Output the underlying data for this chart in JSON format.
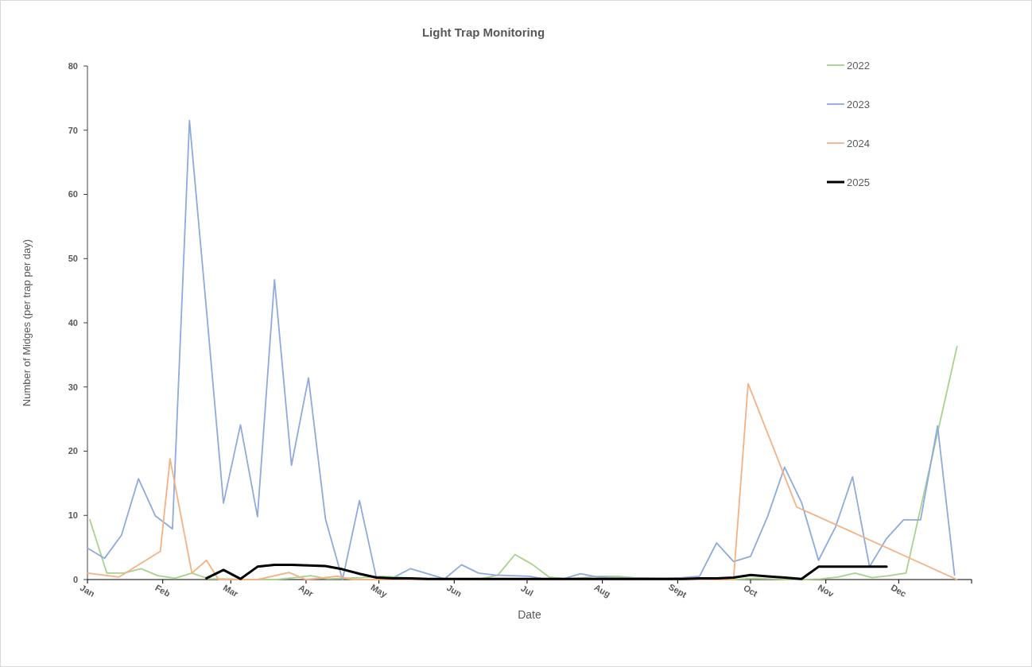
{
  "chart_data": {
    "type": "line",
    "title": "Light Trap Monitoring",
    "xlabel": "Date",
    "ylabel": "Number of Midges (per trap per day)",
    "xlim": [
      "--01-01",
      "--12-31"
    ],
    "xticks": [
      {
        "value": "--01-01",
        "label": "Jan"
      },
      {
        "value": "--02-01",
        "label": "Feb"
      },
      {
        "value": "--03-01",
        "label": "Mar"
      },
      {
        "value": "--04-01",
        "label": "Apr"
      },
      {
        "value": "--05-01",
        "label": "May"
      },
      {
        "value": "--06-01",
        "label": "Jun"
      },
      {
        "value": "--07-01",
        "label": "Jul"
      },
      {
        "value": "--08-01",
        "label": "Aug"
      },
      {
        "value": "--09-01",
        "label": "Sept"
      },
      {
        "value": "--10-01",
        "label": "Oct"
      },
      {
        "value": "--11-01",
        "label": "Nov"
      },
      {
        "value": "--12-01",
        "label": "Dec"
      },
      {
        "value": "--12-31",
        "label": null
      }
    ],
    "ylim": [
      0,
      80
    ],
    "yticks": [
      0,
      10,
      20,
      30,
      40,
      50,
      60,
      70,
      80
    ],
    "legend": "top right",
    "grid": false,
    "marker": "none",
    "series": [
      {
        "name": "2022",
        "color": "#a9d18e",
        "x": [
          "--01-02",
          "--01-09",
          "--01-16",
          "--01-23",
          "--01-30",
          "--02-06",
          "--02-13",
          "--02-20",
          "--02-27",
          "--03-06",
          "--03-13",
          "--03-20",
          "--03-27",
          "--04-03",
          "--04-10",
          "--04-17",
          "--04-24",
          "--05-01",
          "--05-08",
          "--05-15",
          "--05-22",
          "--05-29",
          "--06-05",
          "--06-12",
          "--06-19",
          "--06-26",
          "--07-03",
          "--07-10",
          "--07-17",
          "--07-24",
          "--07-31",
          "--08-07",
          "--08-14",
          "--08-21",
          "--08-28",
          "--09-04",
          "--09-11",
          "--09-18",
          "--09-25",
          "--10-02",
          "--10-09",
          "--10-16",
          "--10-23",
          "--10-30",
          "--11-06",
          "--11-13",
          "--11-20",
          "--11-27",
          "--12-04",
          "--12-25"
        ],
        "values": [
          9.3,
          1.0,
          1.0,
          1.7,
          0.6,
          0.2,
          1.0,
          0.1,
          0.1,
          0,
          0,
          0,
          0.3,
          0.6,
          0.1,
          0.2,
          0.3,
          0.5,
          0.4,
          0.2,
          0.1,
          0.1,
          0.1,
          0.1,
          0.7,
          3.9,
          2.4,
          0.4,
          0.1,
          0.3,
          0.5,
          0.5,
          0.3,
          0.2,
          0.1,
          0,
          0,
          0,
          0,
          0.2,
          0.1,
          0,
          0,
          0.1,
          0.4,
          1.0,
          0.3,
          0.6,
          1.0,
          36.3
        ]
      },
      {
        "name": "2023",
        "color": "#8faadc",
        "x": [
          "--01-01",
          "--01-08",
          "--01-15",
          "--01-22",
          "--01-29",
          "--02-05",
          "--02-12",
          "--02-19",
          "--02-26",
          "--03-05",
          "--03-12",
          "--03-19",
          "--03-26",
          "--04-02",
          "--04-09",
          "--04-16",
          "--04-23",
          "--04-30",
          "--05-07",
          "--05-14",
          "--05-21",
          "--05-28",
          "--06-04",
          "--06-11",
          "--06-18",
          "--06-25",
          "--07-02",
          "--07-09",
          "--07-16",
          "--07-23",
          "--07-30",
          "--08-06",
          "--08-13",
          "--08-20",
          "--08-27",
          "--09-03",
          "--09-10",
          "--09-17",
          "--09-24",
          "--10-01",
          "--10-08",
          "--10-15",
          "--10-22",
          "--10-29",
          "--11-05",
          "--11-12",
          "--11-19",
          "--11-26",
          "--12-03",
          "--12-10",
          "--12-17",
          "--12-24"
        ],
        "values": [
          4.9,
          3.3,
          6.9,
          15.7,
          9.9,
          7.9,
          71.5,
          42,
          11.9,
          24.1,
          9.8,
          46.7,
          17.8,
          31.4,
          9.4,
          0,
          12.3,
          0.2,
          0.3,
          1.7,
          0.9,
          0.1,
          2.3,
          1.0,
          0.7,
          0.6,
          0.5,
          0,
          0.1,
          0.9,
          0.4,
          0.3,
          0.2,
          0.2,
          0.2,
          0.3,
          0.5,
          5.7,
          2.8,
          3.6,
          9.8,
          17.5,
          12,
          3.0,
          8.2,
          16.0,
          2.0,
          6.4,
          9.3,
          9.3,
          23.9,
          0.7
        ]
      },
      {
        "name": "2024",
        "color": "#f4b183",
        "x": [
          "--01-01",
          "--01-14",
          "--01-31",
          "--02-04",
          "--02-13",
          "--02-19",
          "--02-24",
          "--03-12",
          "--03-25",
          "--04-01",
          "--04-14",
          "--04-20",
          "--09-24",
          "--09-30",
          "--10-20",
          "--12-25"
        ],
        "values": [
          1.0,
          0.4,
          4.4,
          18.8,
          1.0,
          3.0,
          0,
          0,
          1.1,
          0,
          0.5,
          0,
          0,
          30.5,
          11.3,
          0
        ]
      },
      {
        "name": "2025",
        "color": "#000000",
        "x": [
          "--02-19",
          "--02-26",
          "--03-05",
          "--03-12",
          "--03-19",
          "--03-26",
          "--04-02",
          "--04-09",
          "--04-16",
          "--04-23",
          "--04-30",
          "--05-07",
          "--05-14",
          "--05-21",
          "--05-28",
          "--06-04",
          "--06-11",
          "--06-18",
          "--06-25",
          "--07-02",
          "--07-09",
          "--07-16",
          "--07-23",
          "--07-30",
          "--08-06",
          "--08-13",
          "--08-20",
          "--08-27",
          "--09-03",
          "--09-10",
          "--09-17",
          "--09-24",
          "--10-01",
          "--10-08",
          "--10-15",
          "--10-22",
          "--10-29",
          "--11-05",
          "--11-12",
          "--11-19",
          "--11-26"
        ],
        "values": [
          0.2,
          1.5,
          0.1,
          2.0,
          2.3,
          2.3,
          2.2,
          2.1,
          1.6,
          0.9,
          0.3,
          0.2,
          0.2,
          0.1,
          0.1,
          0.1,
          0.1,
          0.1,
          0.1,
          0.1,
          0.1,
          0.1,
          0.1,
          0.1,
          0.1,
          0.1,
          0.1,
          0.1,
          0.1,
          0.2,
          0.2,
          0.3,
          0.7,
          0.5,
          0.3,
          0.1,
          2.0,
          2.0,
          2.0,
          2.0,
          2.0
        ]
      }
    ]
  }
}
